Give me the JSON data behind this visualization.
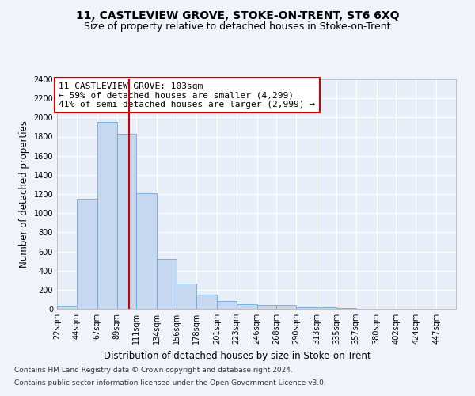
{
  "title": "11, CASTLEVIEW GROVE, STOKE-ON-TRENT, ST6 6XQ",
  "subtitle": "Size of property relative to detached houses in Stoke-on-Trent",
  "xlabel": "Distribution of detached houses by size in Stoke-on-Trent",
  "ylabel": "Number of detached properties",
  "footnote1": "Contains HM Land Registry data © Crown copyright and database right 2024.",
  "footnote2": "Contains public sector information licensed under the Open Government Licence v3.0.",
  "annotation_line1": "11 CASTLEVIEW GROVE: 103sqm",
  "annotation_line2": "← 59% of detached houses are smaller (4,299)",
  "annotation_line3": "41% of semi-detached houses are larger (2,999) →",
  "bin_edges": [
    22,
    44,
    67,
    89,
    111,
    134,
    156,
    178,
    201,
    223,
    246,
    268,
    290,
    313,
    335,
    357,
    380,
    402,
    424,
    447,
    469
  ],
  "bar_heights": [
    30,
    1150,
    1950,
    1830,
    1210,
    520,
    265,
    150,
    80,
    50,
    45,
    40,
    20,
    15,
    5,
    0,
    0,
    0,
    0,
    0
  ],
  "bar_color": "#c5d8ef",
  "bar_edgecolor": "#6fa8d4",
  "vline_color": "#cc0000",
  "vline_x": 103,
  "ylim": [
    0,
    2400
  ],
  "yticks": [
    0,
    200,
    400,
    600,
    800,
    1000,
    1200,
    1400,
    1600,
    1800,
    2000,
    2200,
    2400
  ],
  "bg_color": "#f0f4fa",
  "plot_bg_color": "#e8eef8",
  "grid_color": "#ffffff",
  "title_fontsize": 10,
  "subtitle_fontsize": 9,
  "annotation_fontsize": 8,
  "xlabel_fontsize": 8.5,
  "ylabel_fontsize": 8.5,
  "tick_fontsize": 7,
  "footnote_fontsize": 6.5
}
